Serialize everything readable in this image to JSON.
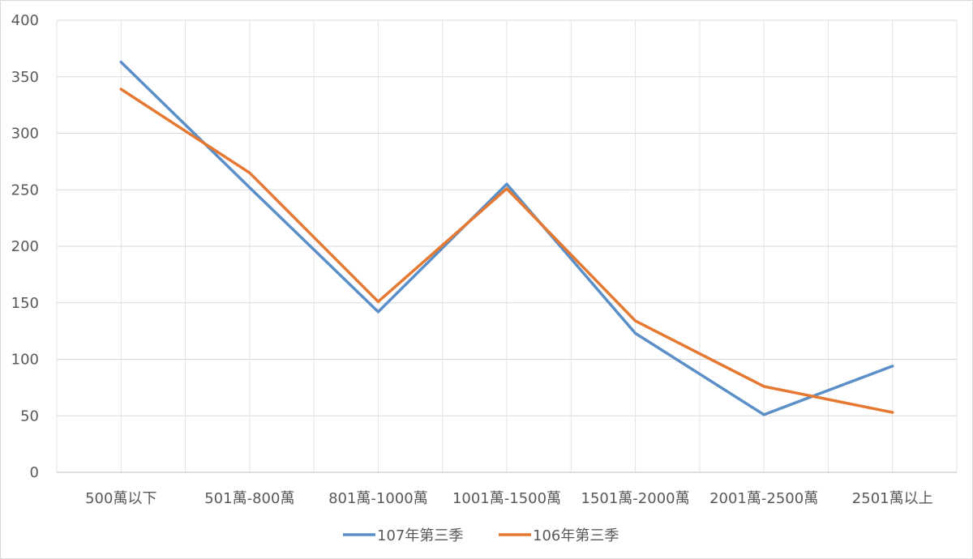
{
  "chart_data": {
    "type": "line",
    "categories": [
      "500萬以下",
      "501萬-800萬",
      "801萬-1000萬",
      "1001萬-1500萬",
      "1501萬-2000萬",
      "2001萬-2500萬",
      "2501萬以上"
    ],
    "series": [
      {
        "name": "107年第三季",
        "color": "#5b8fc7",
        "values": [
          363,
          252,
          142,
          255,
          123,
          51,
          94
        ]
      },
      {
        "name": "106年第三季",
        "color": "#e57932",
        "values": [
          339,
          265,
          151,
          251,
          134,
          76,
          53
        ]
      }
    ],
    "yticks": [
      "0",
      "50",
      "100",
      "150",
      "200",
      "250",
      "300",
      "350",
      "400"
    ],
    "ylim": [
      0,
      400
    ],
    "grid": true,
    "legend": "bottom"
  }
}
